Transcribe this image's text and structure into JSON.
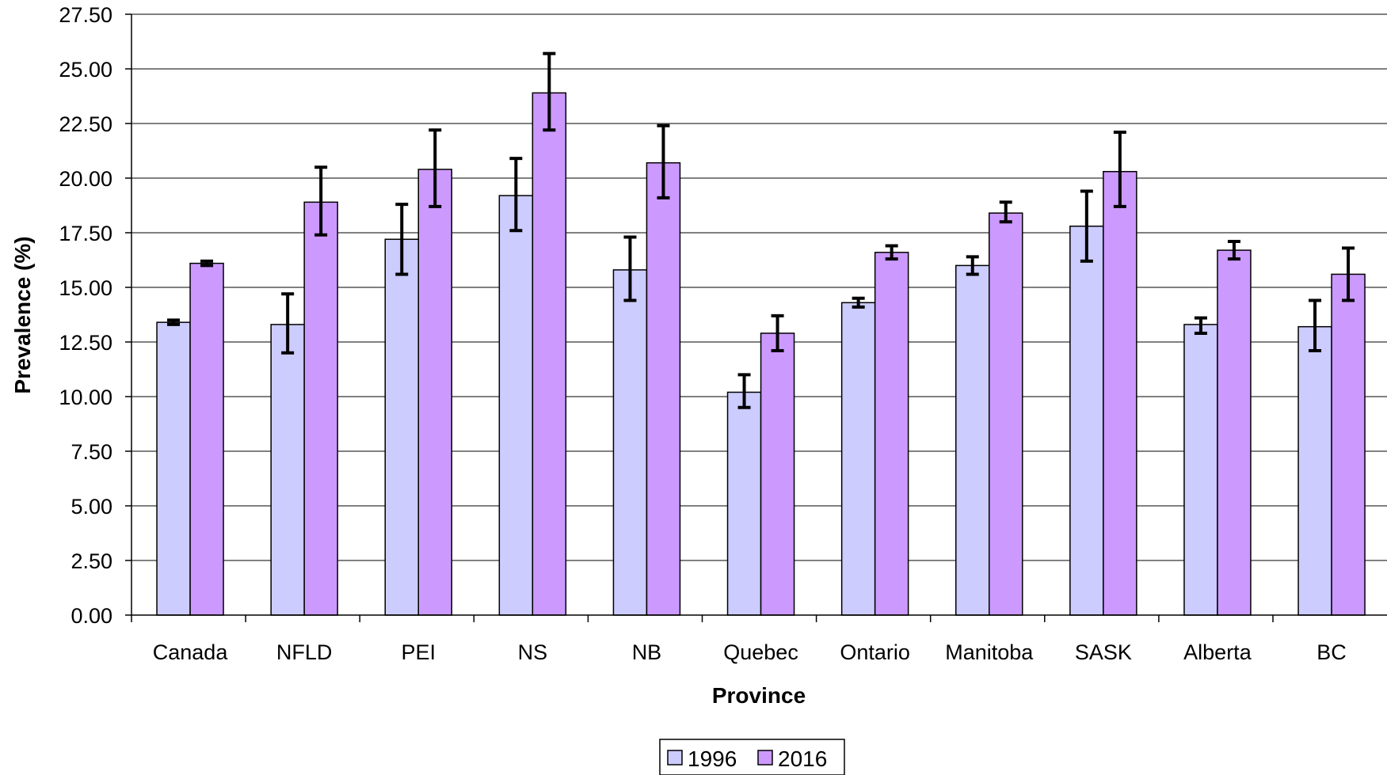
{
  "chart_data": {
    "type": "bar",
    "title": "",
    "xlabel": "Province",
    "ylabel": "Prevalence (%)",
    "ylim": [
      0,
      27.5
    ],
    "ytick_step": 2.5,
    "ytick_labels": [
      "0.00",
      "2.50",
      "5.00",
      "7.50",
      "10.00",
      "12.50",
      "15.00",
      "17.50",
      "20.00",
      "22.50",
      "25.00",
      "27.50"
    ],
    "grid": true,
    "legend_position": "bottom-center",
    "categories": [
      "Canada",
      "NFLD",
      "PEI",
      "NS",
      "NB",
      "Quebec",
      "Ontario",
      "Manitoba",
      "SASK",
      "Alberta",
      "BC"
    ],
    "series": [
      {
        "name": "1996",
        "color": "#ccccff",
        "values": [
          13.4,
          13.3,
          17.2,
          19.2,
          15.8,
          10.2,
          14.3,
          16.0,
          17.8,
          13.3,
          13.2
        ],
        "err_low": [
          13.3,
          12.0,
          15.6,
          17.6,
          14.4,
          9.5,
          14.1,
          15.6,
          16.2,
          12.9,
          12.1
        ],
        "err_high": [
          13.5,
          14.7,
          18.8,
          20.9,
          17.3,
          11.0,
          14.5,
          16.4,
          19.4,
          13.6,
          14.4
        ]
      },
      {
        "name": "2016",
        "color": "#cc99ff",
        "values": [
          16.1,
          18.9,
          20.4,
          23.9,
          20.7,
          12.9,
          16.6,
          18.4,
          20.3,
          16.7,
          15.6
        ],
        "err_low": [
          16.0,
          17.4,
          18.7,
          22.2,
          19.1,
          12.1,
          16.3,
          18.0,
          18.7,
          16.3,
          14.4
        ],
        "err_high": [
          16.2,
          20.5,
          22.2,
          25.7,
          22.4,
          13.7,
          16.9,
          18.9,
          22.1,
          17.1,
          16.8
        ]
      }
    ]
  }
}
